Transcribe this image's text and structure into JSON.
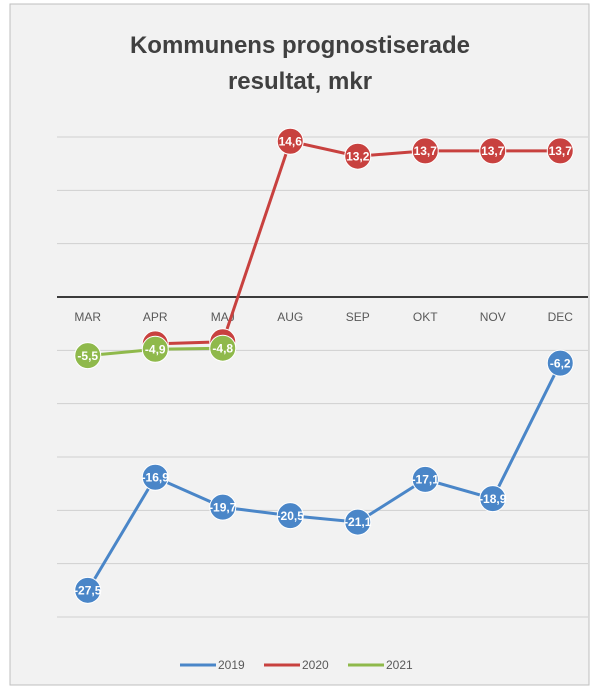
{
  "chart_data": {
    "type": "line",
    "title": "Kommunens prognostiserade resultat, mkr",
    "categories": [
      "MAR",
      "APR",
      "MAJ",
      "AUG",
      "SEP",
      "OKT",
      "NOV",
      "DEC"
    ],
    "series": [
      {
        "name": "2019",
        "color": "#4a86c8",
        "values": [
          -27.5,
          -16.9,
          -19.7,
          -20.5,
          -21.1,
          -17.1,
          -18.9,
          -6.2
        ],
        "value_labels": [
          "-27,5",
          "-16,9",
          "-19,7",
          "-20,5",
          "-21,1",
          "-17,1",
          "-18,9",
          "-6,2"
        ]
      },
      {
        "name": "2020",
        "color": "#c8413f",
        "values": [
          null,
          -4.4,
          -4.2,
          14.6,
          13.2,
          13.7,
          13.7,
          13.7
        ],
        "value_labels": [
          null,
          "-4,4",
          "-4,2",
          "14,6",
          "13,2",
          "13,7",
          "13,7",
          "13,7"
        ]
      },
      {
        "name": "2021",
        "color": "#8fb94b",
        "values": [
          -5.5,
          -4.9,
          -4.8,
          null,
          null,
          null,
          null,
          null
        ],
        "value_labels": [
          "-5,5",
          "-4,9",
          "-4,8",
          null,
          null,
          null,
          null,
          null
        ]
      }
    ],
    "ylim": [
      -30,
      15
    ],
    "yticks": [
      -30,
      -25,
      -20,
      -15,
      -10,
      -5,
      0,
      5,
      10,
      15
    ],
    "grid": true
  }
}
